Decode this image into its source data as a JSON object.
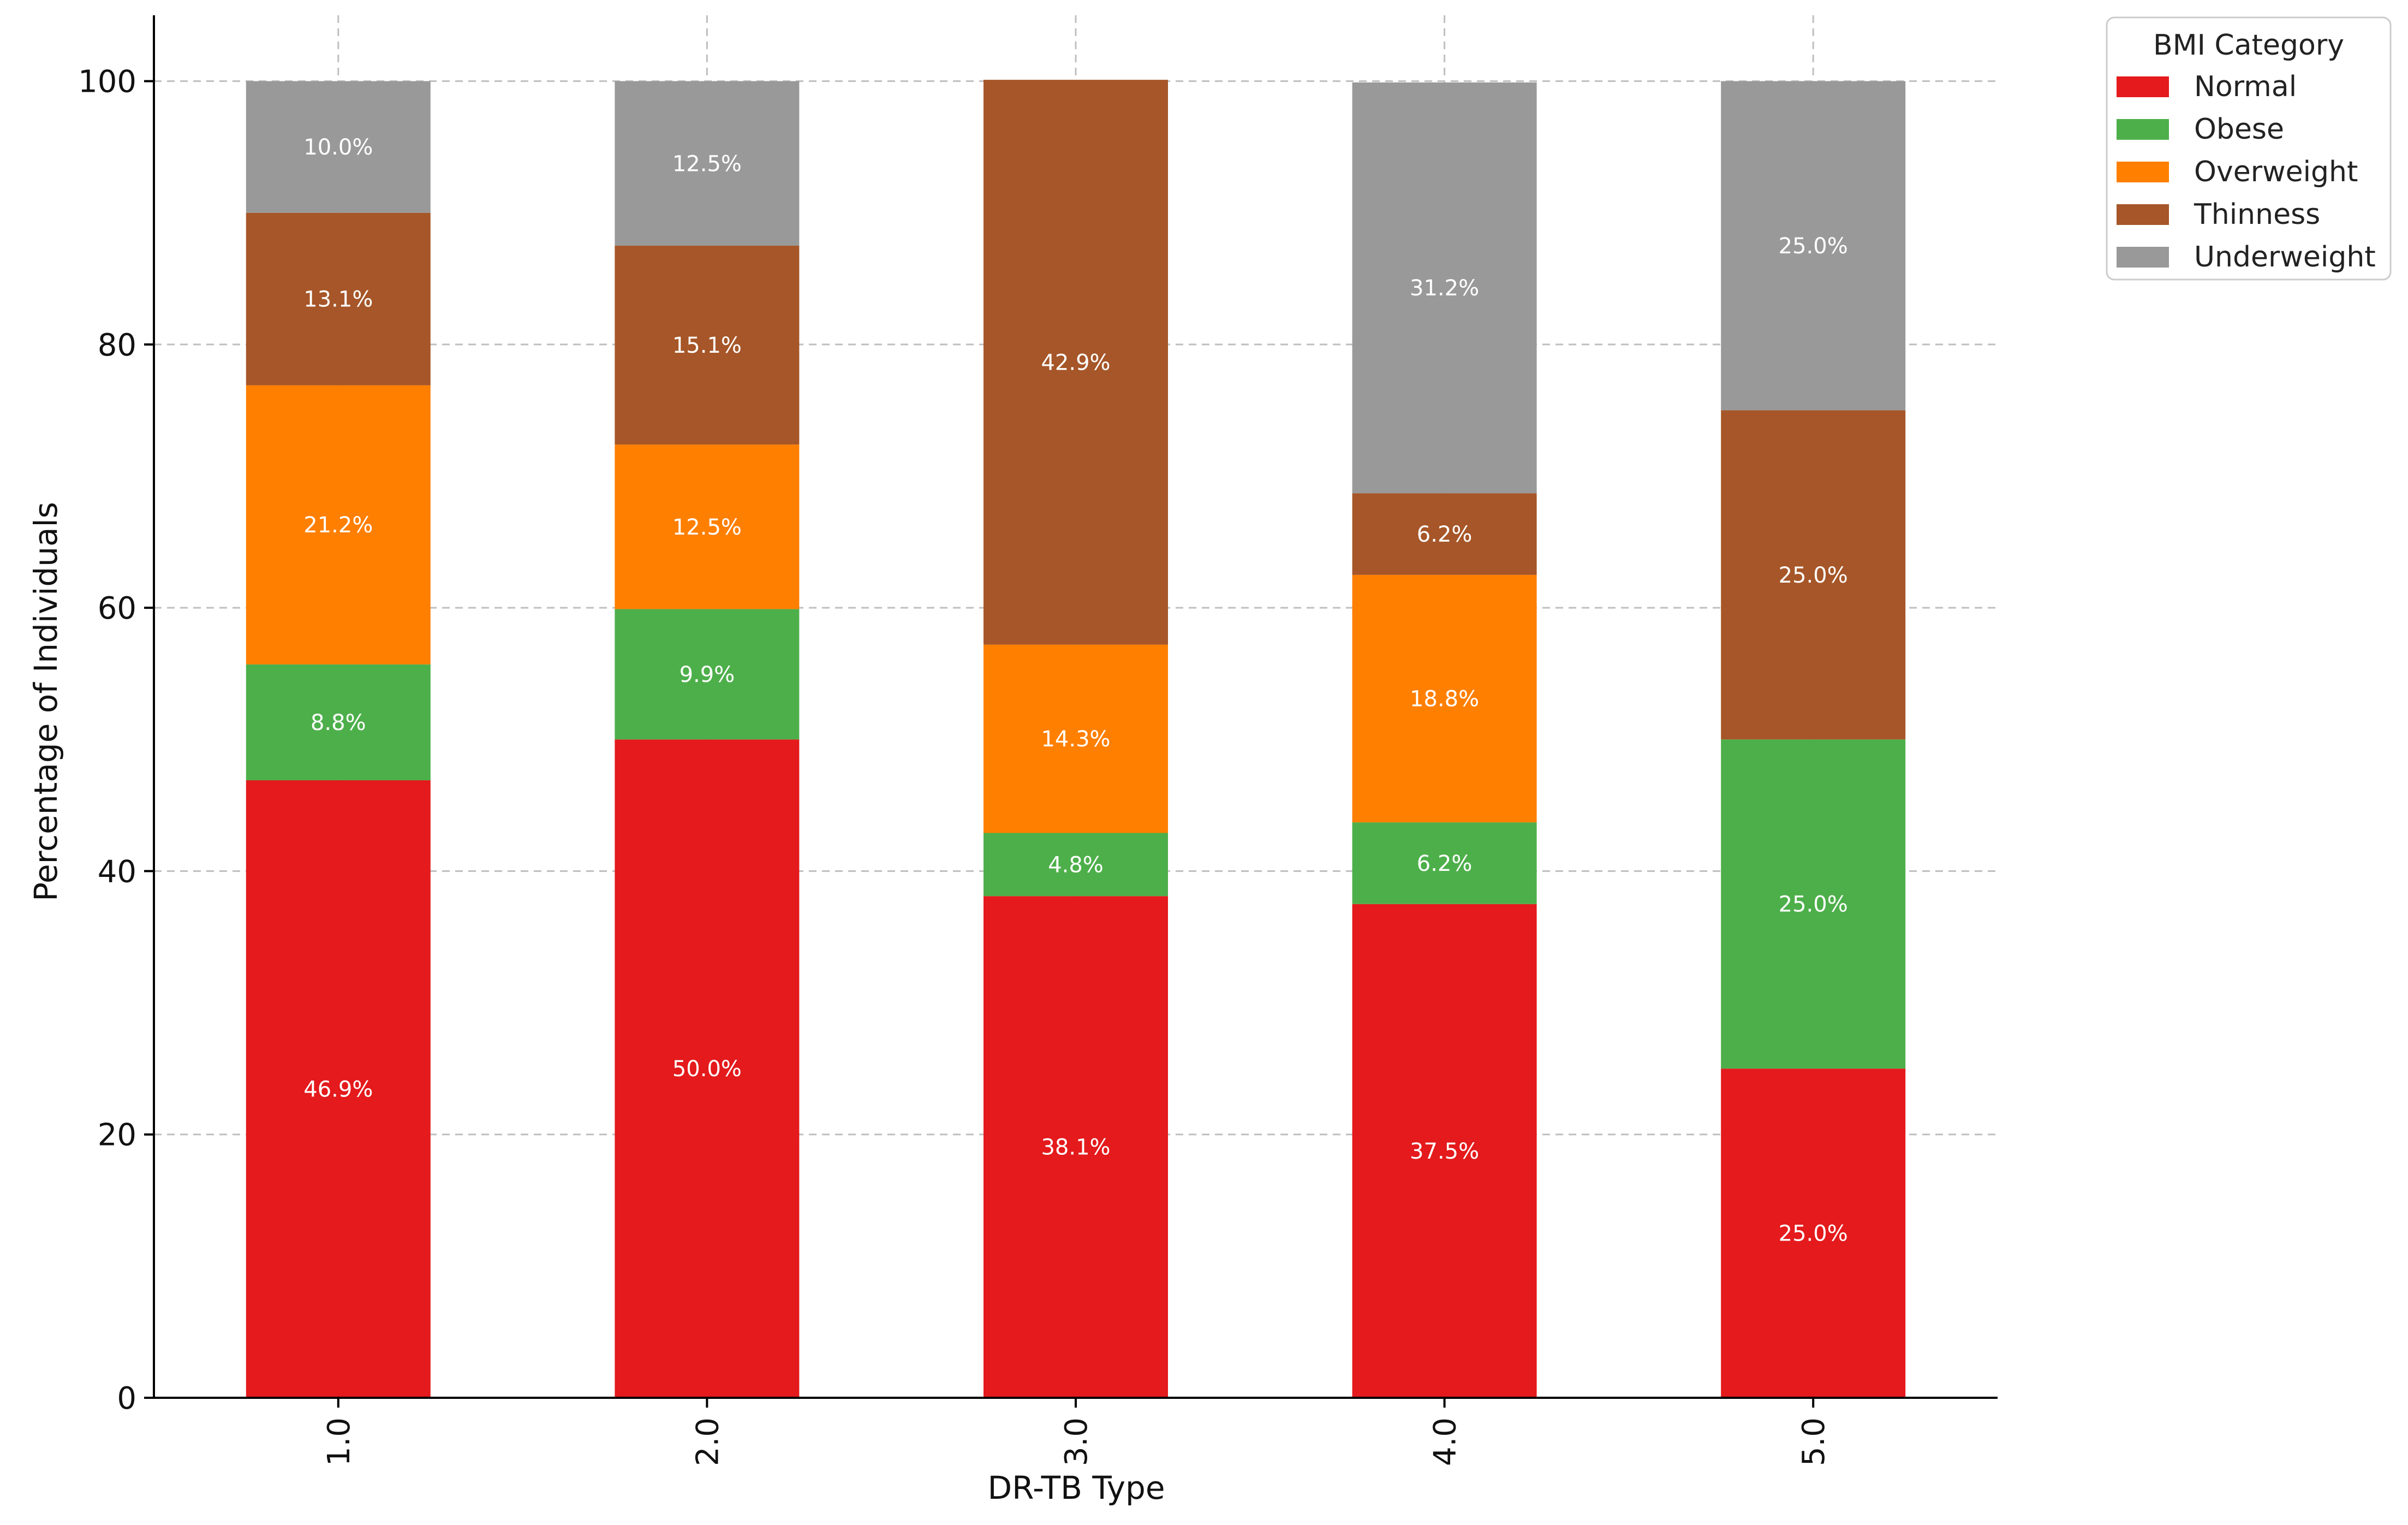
{
  "chart_data": {
    "type": "bar",
    "stacked": true,
    "title": "",
    "xlabel": "DR-TB Type",
    "ylabel": "Percentage of Individuals",
    "categories": [
      "1.0",
      "2.0",
      "3.0",
      "4.0",
      "5.0"
    ],
    "ylim": [
      0,
      105
    ],
    "yticks": [
      0,
      20,
      40,
      60,
      80,
      100
    ],
    "grid": true,
    "legend": {
      "title": "BMI Category",
      "placement": "outside-top-right"
    },
    "series": [
      {
        "name": "Normal",
        "color": "#e41a1c",
        "values": [
          46.9,
          50.0,
          38.1,
          37.5,
          25.0
        ],
        "labels": [
          "46.9%",
          "50.0%",
          "38.1%",
          "37.5%",
          "25.0%"
        ]
      },
      {
        "name": "Obese",
        "color": "#4daf4a",
        "values": [
          8.8,
          9.9,
          4.8,
          6.2,
          25.0
        ],
        "labels": [
          "8.8%",
          "9.9%",
          "4.8%",
          "6.2%",
          "25.0%"
        ]
      },
      {
        "name": "Overweight",
        "color": "#ff7f00",
        "values": [
          21.2,
          12.5,
          14.3,
          18.8,
          0
        ],
        "labels": [
          "21.2%",
          "12.5%",
          "14.3%",
          "18.8%",
          ""
        ]
      },
      {
        "name": "Thinness",
        "color": "#a65628",
        "values": [
          13.1,
          15.1,
          42.9,
          6.2,
          25.0
        ],
        "labels": [
          "13.1%",
          "15.1%",
          "42.9%",
          "6.2%",
          "25.0%"
        ]
      },
      {
        "name": "Underweight",
        "color": "#999999",
        "values": [
          10.0,
          12.5,
          0,
          31.2,
          25.0
        ],
        "labels": [
          "10.0%",
          "12.5%",
          "",
          "31.2%",
          "25.0%"
        ]
      }
    ]
  }
}
